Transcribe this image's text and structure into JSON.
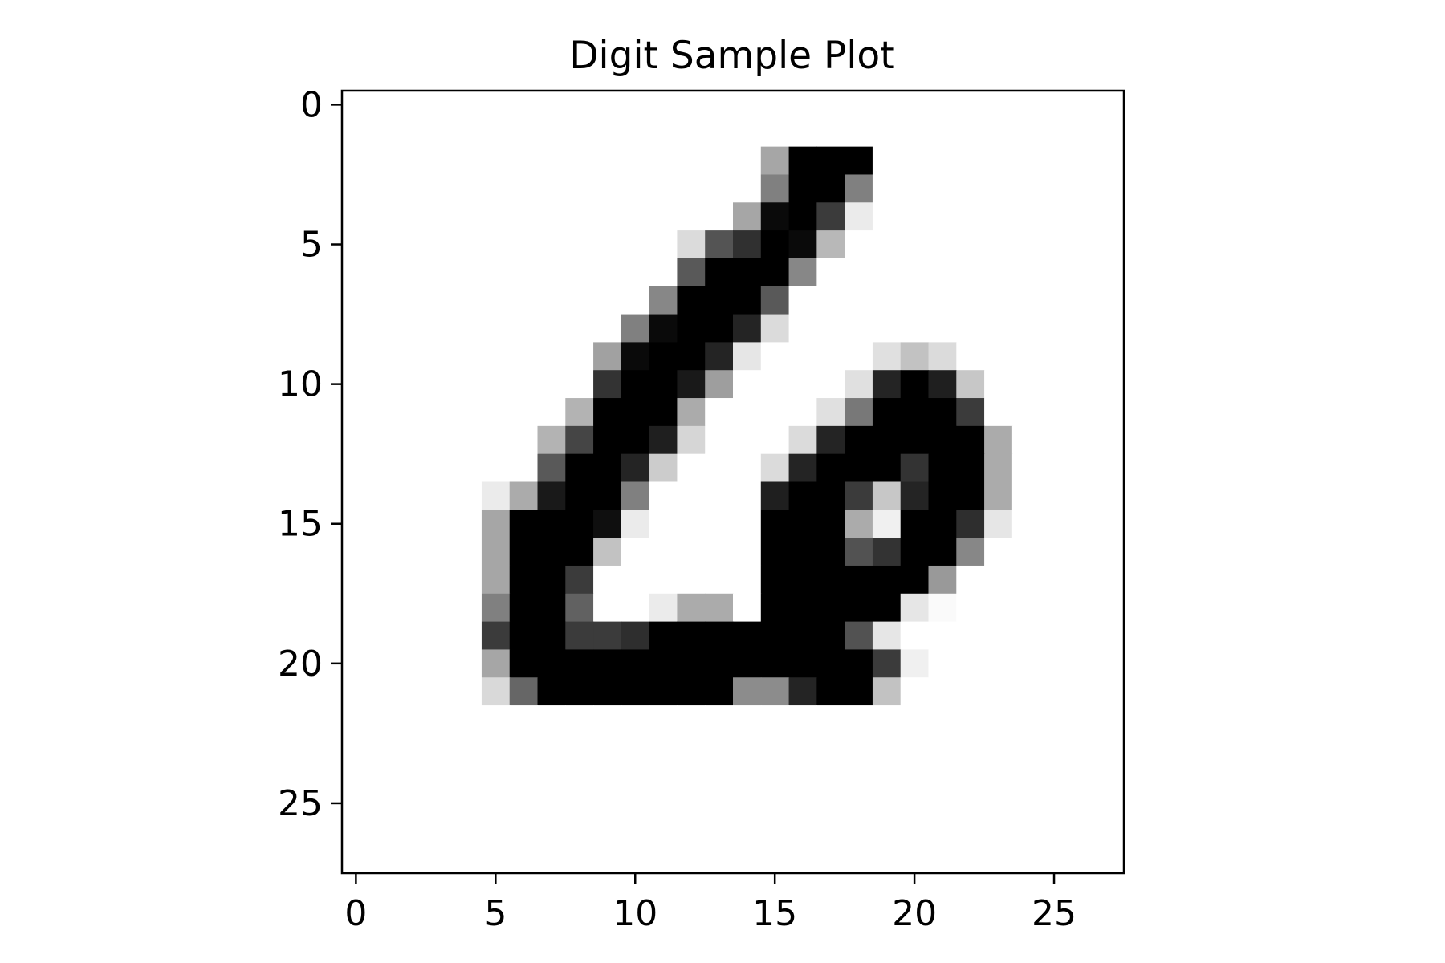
{
  "chart_data": {
    "type": "heatmap",
    "title": "Digit Sample Plot",
    "xlabel": "",
    "ylabel": "",
    "colormap": "gray_r",
    "value_range": [
      0,
      1
    ],
    "grid": false,
    "x_ticks": [
      0,
      5,
      10,
      15,
      20,
      25
    ],
    "y_ticks": [
      0,
      5,
      10,
      15,
      20,
      25
    ],
    "x_tick_labels": [
      "0",
      "5",
      "10",
      "15",
      "20",
      "25"
    ],
    "y_tick_labels": [
      "0",
      "5",
      "10",
      "15",
      "20",
      "25"
    ],
    "xlim": [
      -0.5,
      27.5
    ],
    "ylim": [
      27.5,
      -0.5
    ],
    "shape": [
      28,
      28
    ],
    "pixels": [
      [
        0,
        0,
        0,
        0,
        0,
        0,
        0,
        0,
        0,
        0,
        0,
        0,
        0,
        0,
        0,
        0,
        0,
        0,
        0,
        0,
        0,
        0,
        0,
        0,
        0,
        0,
        0,
        0
      ],
      [
        0,
        0,
        0,
        0,
        0,
        0,
        0,
        0,
        0,
        0,
        0,
        0,
        0,
        0,
        0,
        0,
        0,
        0,
        0,
        0,
        0,
        0,
        0,
        0,
        0,
        0,
        0,
        0
      ],
      [
        0,
        0,
        0,
        0,
        0,
        0,
        0,
        0,
        0,
        0,
        0,
        0,
        0,
        0,
        0,
        0.35,
        1,
        1,
        1,
        0,
        0,
        0,
        0,
        0,
        0,
        0,
        0,
        0
      ],
      [
        0,
        0,
        0,
        0,
        0,
        0,
        0,
        0,
        0,
        0,
        0,
        0,
        0,
        0,
        0,
        0.5,
        1,
        1,
        0.5,
        0,
        0,
        0,
        0,
        0,
        0,
        0,
        0,
        0
      ],
      [
        0,
        0,
        0,
        0,
        0,
        0,
        0,
        0,
        0,
        0,
        0,
        0,
        0,
        0,
        0.35,
        0.96,
        1,
        0.77,
        0.08,
        0,
        0,
        0,
        0,
        0,
        0,
        0,
        0,
        0
      ],
      [
        0,
        0,
        0,
        0,
        0,
        0,
        0,
        0,
        0,
        0,
        0,
        0,
        0.14,
        0.67,
        0.81,
        1,
        0.96,
        0.28,
        0,
        0,
        0,
        0,
        0,
        0,
        0,
        0,
        0,
        0
      ],
      [
        0,
        0,
        0,
        0,
        0,
        0,
        0,
        0,
        0,
        0,
        0,
        0,
        0.65,
        1,
        1,
        1,
        0.47,
        0,
        0,
        0,
        0,
        0,
        0,
        0,
        0,
        0,
        0,
        0
      ],
      [
        0,
        0,
        0,
        0,
        0,
        0,
        0,
        0,
        0,
        0,
        0,
        0.47,
        1,
        1,
        1,
        0.65,
        0,
        0,
        0,
        0,
        0,
        0,
        0,
        0,
        0,
        0,
        0,
        0
      ],
      [
        0,
        0,
        0,
        0,
        0,
        0,
        0,
        0,
        0,
        0,
        0.5,
        0.96,
        1,
        1,
        0.86,
        0.14,
        0,
        0,
        0,
        0,
        0,
        0,
        0,
        0,
        0,
        0,
        0,
        0
      ],
      [
        0,
        0,
        0,
        0,
        0,
        0,
        0,
        0,
        0,
        0.37,
        0.96,
        1,
        1,
        0.86,
        0.1,
        0,
        0,
        0,
        0,
        0.12,
        0.24,
        0.14,
        0,
        0,
        0,
        0,
        0,
        0
      ],
      [
        0,
        0,
        0,
        0,
        0,
        0,
        0,
        0,
        0,
        0.8,
        1,
        1,
        0.9,
        0.38,
        0,
        0,
        0,
        0,
        0.12,
        0.86,
        1,
        0.88,
        0.22,
        0,
        0,
        0,
        0,
        0
      ],
      [
        0,
        0,
        0,
        0,
        0,
        0,
        0,
        0,
        0.3,
        1,
        1,
        1,
        0.33,
        0,
        0,
        0,
        0,
        0.12,
        0.53,
        1,
        1,
        1,
        0.77,
        0,
        0,
        0,
        0,
        0
      ],
      [
        0,
        0,
        0,
        0,
        0,
        0,
        0,
        0.3,
        0.73,
        1,
        1,
        0.88,
        0.16,
        0,
        0,
        0,
        0.14,
        0.86,
        1,
        1,
        1,
        1,
        1,
        0.33,
        0,
        0,
        0,
        0
      ],
      [
        0,
        0,
        0,
        0,
        0,
        0,
        0,
        0.65,
        1,
        1,
        0.86,
        0.2,
        0,
        0,
        0,
        0.14,
        0.86,
        1,
        1,
        1,
        0.8,
        1,
        1,
        0.33,
        0,
        0,
        0,
        0
      ],
      [
        0,
        0,
        0,
        0,
        0,
        0.08,
        0.33,
        0.9,
        1,
        1,
        0.5,
        0,
        0,
        0,
        0,
        0.88,
        1,
        1,
        0.77,
        0.22,
        0.86,
        1,
        1,
        0.33,
        0,
        0,
        0,
        0
      ],
      [
        0,
        0,
        0,
        0,
        0,
        0.35,
        1,
        1,
        1,
        0.94,
        0.08,
        0,
        0,
        0,
        0,
        1,
        1,
        1,
        0.33,
        0.06,
        1,
        1,
        0.82,
        0.1,
        0,
        0,
        0,
        0
      ],
      [
        0,
        0,
        0,
        0,
        0,
        0.35,
        1,
        1,
        1,
        0.24,
        0,
        0,
        0,
        0,
        0,
        1,
        1,
        1,
        0.68,
        0.8,
        1,
        1,
        0.47,
        0,
        0,
        0,
        0,
        0
      ],
      [
        0,
        0,
        0,
        0,
        0,
        0.35,
        1,
        1,
        0.77,
        0,
        0,
        0,
        0,
        0,
        0,
        1,
        1,
        1,
        1,
        1,
        1,
        0.4,
        0,
        0,
        0,
        0,
        0,
        0
      ],
      [
        0,
        0,
        0,
        0,
        0,
        0.5,
        1,
        1,
        0.62,
        0,
        0,
        0.08,
        0.33,
        0.33,
        0,
        1,
        1,
        1,
        1,
        1,
        0.1,
        0.02,
        0,
        0,
        0,
        0,
        0,
        0
      ],
      [
        0,
        0,
        0,
        0,
        0,
        0.77,
        1,
        1,
        0.77,
        0.77,
        0.82,
        1,
        1,
        1,
        1,
        1,
        1,
        1,
        0.68,
        0.1,
        0,
        0,
        0,
        0,
        0,
        0,
        0,
        0
      ],
      [
        0,
        0,
        0,
        0,
        0,
        0.35,
        1,
        1,
        1,
        1,
        1,
        1,
        1,
        1,
        1,
        1,
        1,
        1,
        1,
        0.77,
        0.06,
        0,
        0,
        0,
        0,
        0,
        0,
        0,
        0
      ],
      [
        0,
        0,
        0,
        0,
        0,
        0.15,
        0.6,
        1,
        1,
        1,
        1,
        1,
        1,
        1,
        0.45,
        0.45,
        0.86,
        1,
        1,
        0.24,
        0,
        0,
        0,
        0,
        0,
        0,
        0,
        0
      ],
      [
        0,
        0,
        0,
        0,
        0,
        0,
        0,
        0,
        0,
        0,
        0,
        0,
        0,
        0,
        0,
        0,
        0,
        0,
        0,
        0,
        0,
        0,
        0,
        0,
        0,
        0,
        0,
        0
      ],
      [
        0,
        0,
        0,
        0,
        0,
        0,
        0,
        0,
        0,
        0,
        0,
        0,
        0,
        0,
        0,
        0,
        0,
        0,
        0,
        0,
        0,
        0,
        0,
        0,
        0,
        0,
        0,
        0
      ],
      [
        0,
        0,
        0,
        0,
        0,
        0,
        0,
        0,
        0,
        0,
        0,
        0,
        0,
        0,
        0,
        0,
        0,
        0,
        0,
        0,
        0,
        0,
        0,
        0,
        0,
        0,
        0,
        0
      ],
      [
        0,
        0,
        0,
        0,
        0,
        0,
        0,
        0,
        0,
        0,
        0,
        0,
        0,
        0,
        0,
        0,
        0,
        0,
        0,
        0,
        0,
        0,
        0,
        0,
        0,
        0,
        0,
        0
      ],
      [
        0,
        0,
        0,
        0,
        0,
        0,
        0,
        0,
        0,
        0,
        0,
        0,
        0,
        0,
        0,
        0,
        0,
        0,
        0,
        0,
        0,
        0,
        0,
        0,
        0,
        0,
        0,
        0
      ],
      [
        0,
        0,
        0,
        0,
        0,
        0,
        0,
        0,
        0,
        0,
        0,
        0,
        0,
        0,
        0,
        0,
        0,
        0,
        0,
        0,
        0,
        0,
        0,
        0,
        0,
        0,
        0,
        0
      ]
    ]
  }
}
